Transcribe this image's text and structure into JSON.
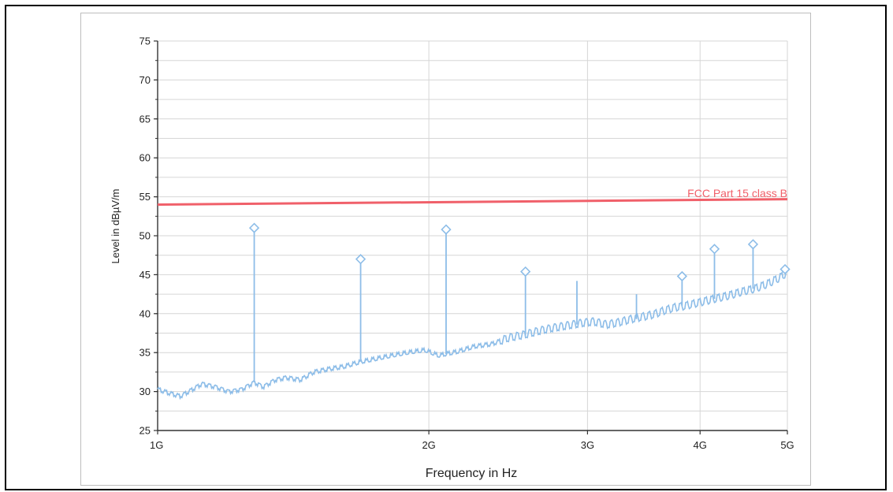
{
  "chart_data": {
    "type": "line",
    "x_scale": "log",
    "xlabel": "Frequency in Hz",
    "ylabel": "Level in dBµV/m",
    "xlim": [
      1000000000.0,
      5000000000.0
    ],
    "ylim": [
      25,
      75
    ],
    "y_ticks": [
      25,
      30,
      35,
      40,
      45,
      50,
      55,
      60,
      65,
      70,
      75
    ],
    "x_ticks": [
      {
        "value": 1000000000.0,
        "label": "1G"
      },
      {
        "value": 2000000000.0,
        "label": "2G"
      },
      {
        "value": 3000000000.0,
        "label": "3G"
      },
      {
        "value": 4000000000.0,
        "label": "4G"
      },
      {
        "value": 5000000000.0,
        "label": "5G"
      }
    ],
    "grid": true,
    "limit_line": {
      "name": "FCC Part 15 class B",
      "color": "#f0606a",
      "x": [
        1000000000.0,
        5000000000.0
      ],
      "y": [
        54.0,
        54.7
      ]
    },
    "series": [
      {
        "color": "#8dbde8",
        "x": [
          1000000000.0,
          1030000000.0,
          1060000000.0,
          1090000000.0,
          1120000000.0,
          1160000000.0,
          1200000000.0,
          1240000000.0,
          1280000000.0,
          1310000000.0,
          1350000000.0,
          1390000000.0,
          1440000000.0,
          1490000000.0,
          1550000000.0,
          1610000000.0,
          1680000000.0,
          1750000000.0,
          1820000000.0,
          1900000000.0,
          1980000000.0,
          2050000000.0,
          2150000000.0,
          2250000000.0,
          2350000000.0,
          2450000000.0,
          2550000000.0,
          2650000000.0,
          2750000000.0,
          2850000000.0,
          2950000000.0,
          3050000000.0,
          3150000000.0,
          3250000000.0,
          3350000000.0,
          3450000000.0,
          3550000000.0,
          3650000000.0,
          3750000000.0,
          3850000000.0,
          3950000000.0,
          4050000000.0,
          4150000000.0,
          4300000000.0,
          4450000000.0,
          4600000000.0,
          4750000000.0,
          4900000000.0,
          5000000000.0
        ],
        "values": [
          30.3,
          29.8,
          29.4,
          30.2,
          31.0,
          30.6,
          30.0,
          30.3,
          31.2,
          30.6,
          31.5,
          31.8,
          31.5,
          32.5,
          32.9,
          33.2,
          33.8,
          34.2,
          34.6,
          35.0,
          35.3,
          34.6,
          35.1,
          35.8,
          36.1,
          36.9,
          37.3,
          37.8,
          38.2,
          38.5,
          38.8,
          39.0,
          38.6,
          38.9,
          39.3,
          39.6,
          39.9,
          40.4,
          40.8,
          41.0,
          41.3,
          41.6,
          41.9,
          42.3,
          42.8,
          43.2,
          43.8,
          44.6,
          45.3
        ]
      }
    ],
    "peaks": [
      {
        "x": 1280000000.0,
        "value": 51.0,
        "base": 31.2,
        "marker": true
      },
      {
        "x": 1680000000.0,
        "value": 47.0,
        "base": 34.0,
        "marker": true
      },
      {
        "x": 2090000000.0,
        "value": 50.8,
        "base": 34.8,
        "marker": true
      },
      {
        "x": 2560000000.0,
        "value": 45.4,
        "base": 37.2,
        "marker": true
      },
      {
        "x": 2920000000.0,
        "value": 44.2,
        "base": 38.6,
        "marker": false
      },
      {
        "x": 3400000000.0,
        "value": 42.5,
        "base": 39.3,
        "marker": false
      },
      {
        "x": 3820000000.0,
        "value": 44.8,
        "base": 41.0,
        "marker": true
      },
      {
        "x": 4150000000.0,
        "value": 48.3,
        "base": 41.9,
        "marker": true
      },
      {
        "x": 4580000000.0,
        "value": 48.9,
        "base": 43.2,
        "marker": true
      },
      {
        "x": 4970000000.0,
        "value": 45.7,
        "base": 45.1,
        "marker": true
      }
    ]
  }
}
